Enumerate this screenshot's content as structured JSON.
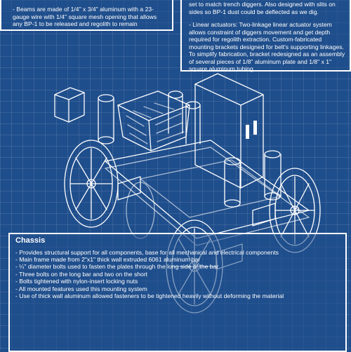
{
  "top_left": {
    "text": "- Beams are made of 1/4\" x 3/4\" aluminum with a 23-gauge wire with 1/4\" square mesh opening that allows any BP-1 to be released and regolith to remain"
  },
  "top_right": {
    "intro": "set to match trench diggers. Also designed with slits on sides so BP-1 dust could be deflected as we dig.",
    "actuators": "- Linear actuators: Two-linkage linear actuator system allows constraint of diggers movement and get depth required for regolith extraction. Custom-fabricated mounting brackets designed for belt's supporting linkages. To simplify fabrication, bracket redesigned as an assembly of several pieces of 1/8\" aluminum plate and 1/8\" x 1\" square aluminum tubing."
  },
  "chassis": {
    "title": "Chassis",
    "items": [
      "- Provides structural support for all components, base for all mechanical and electrical components",
      "- Main frame made from 2\"x1\" thick wall extruded 6061 aluminum bar",
      "- ¼\" diameter bolts used to fasten the plates through the long side of the bar",
      "- Three bolts on the long bar and two on the short",
      "- Bolts tightened with nylon-insert locking nuts",
      "- All mounted features used this mounting system",
      "- Use of thick wall aluminum allowed fasteners to be tightened heavily without deforming the material"
    ]
  },
  "colors": {
    "background": "#1f4e8c",
    "line": "#ffffff"
  }
}
